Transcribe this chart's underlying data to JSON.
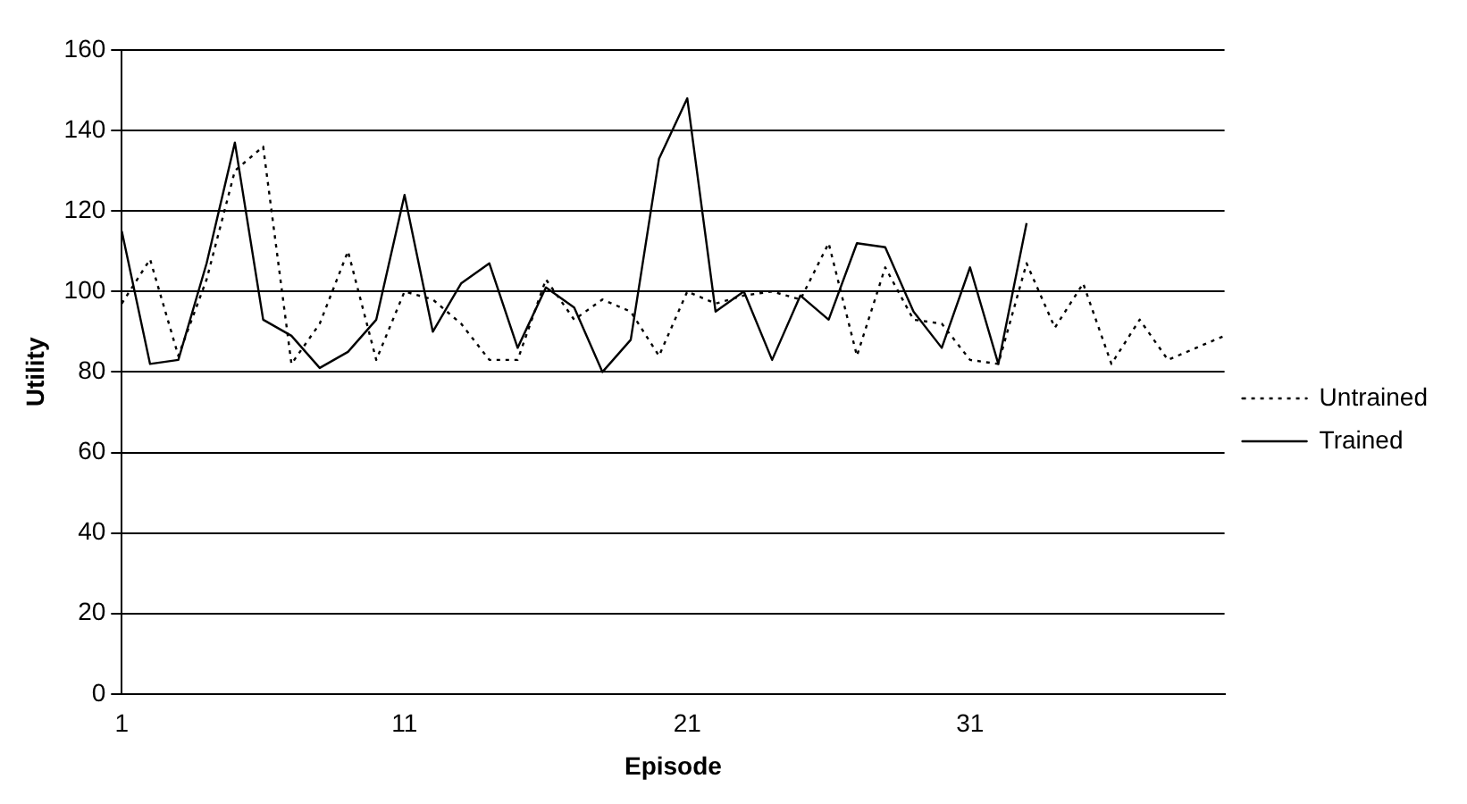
{
  "chart_data": {
    "type": "line",
    "xlabel": "Episode",
    "ylabel": "Utility",
    "categories": [
      "1",
      null,
      null,
      null,
      null,
      null,
      null,
      null,
      null,
      null,
      "11",
      null,
      null,
      null,
      null,
      null,
      null,
      null,
      null,
      null,
      "21",
      null,
      null,
      null,
      null,
      null,
      null,
      null,
      null,
      null,
      "31",
      null,
      null,
      null,
      null,
      null,
      null,
      null,
      null,
      null
    ],
    "series": [
      {
        "name": "Untrained",
        "color": "#000000",
        "line_style": "dotted",
        "values": [
          97,
          108,
          84,
          103,
          130,
          136,
          82,
          92,
          110,
          83,
          100,
          98,
          92,
          83,
          83,
          103,
          93,
          98,
          95,
          84,
          100,
          97,
          99,
          100,
          98,
          112,
          84,
          106,
          93,
          92,
          83,
          82,
          107,
          91,
          102,
          82,
          93,
          83,
          86,
          89
        ]
      },
      {
        "name": "Trained",
        "color": "#000000",
        "line_style": "solid",
        "values": [
          115,
          82,
          83,
          107,
          137,
          93,
          89,
          81,
          85,
          93,
          124,
          90,
          102,
          107,
          86,
          101,
          96,
          80,
          88,
          133,
          148,
          95,
          100,
          83,
          99,
          93,
          112,
          111,
          95,
          86,
          106,
          82,
          117,
          null,
          null,
          null,
          null,
          null,
          null,
          null
        ]
      }
    ],
    "ylim": [
      0,
      160
    ],
    "yticks": [
      0,
      20,
      40,
      60,
      80,
      100,
      120,
      140,
      160
    ],
    "grid": "y",
    "legend": "right",
    "marker": "none"
  }
}
